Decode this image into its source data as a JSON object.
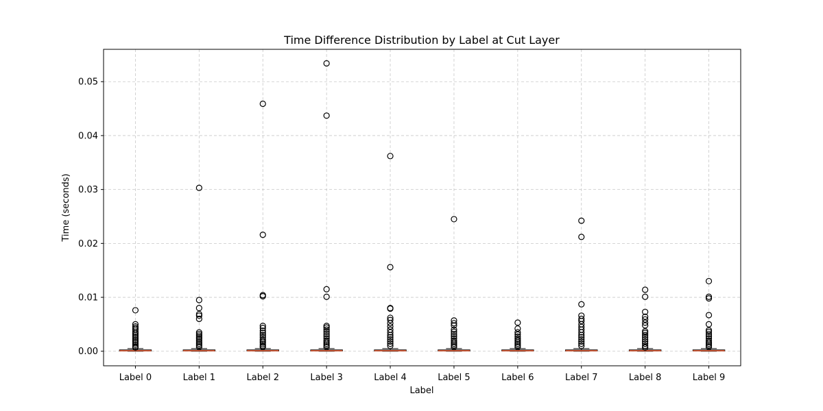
{
  "chart_data": {
    "type": "box",
    "title": "Time Difference Distribution by Label at Cut Layer",
    "xlabel": "Label",
    "ylabel": "Time (seconds)",
    "ylim": [
      -0.0027,
      0.056
    ],
    "yticks": [
      0.0,
      0.01,
      0.02,
      0.03,
      0.04,
      0.05
    ],
    "ytick_labels": [
      "0.00",
      "0.01",
      "0.02",
      "0.03",
      "0.04",
      "0.05"
    ],
    "grid": true,
    "colors": {
      "median": "#e8552a",
      "box": "#000000",
      "flier": "#000000",
      "grid": "#b0b0b0"
    },
    "categories": [
      "Label 0",
      "Label 1",
      "Label 2",
      "Label 3",
      "Label 4",
      "Label 5",
      "Label 6",
      "Label 7",
      "Label 8",
      "Label 9"
    ],
    "boxes": [
      {
        "q1": 5e-05,
        "median": 0.0001,
        "q3": 0.00025,
        "whisker_low": 0.0,
        "whisker_high": 0.0005,
        "outliers": [
          0.0076,
          0.005,
          0.0046,
          0.0043,
          0.004,
          0.0036,
          0.0033,
          0.003,
          0.0027,
          0.0024,
          0.0021,
          0.0018,
          0.0015,
          0.0012,
          0.0009,
          0.0007
        ]
      },
      {
        "q1": 5e-05,
        "median": 0.0001,
        "q3": 0.00025,
        "whisker_low": 0.0,
        "whisker_high": 0.0005,
        "outliers": [
          0.0303,
          0.0095,
          0.008,
          0.0069,
          0.0066,
          0.006,
          0.0035,
          0.0032,
          0.0029,
          0.0026,
          0.0023,
          0.002,
          0.0017,
          0.0014,
          0.0011,
          0.0008
        ]
      },
      {
        "q1": 5e-05,
        "median": 0.0001,
        "q3": 0.00025,
        "whisker_low": 0.0,
        "whisker_high": 0.0005,
        "outliers": [
          0.0459,
          0.0216,
          0.0104,
          0.0102,
          0.0047,
          0.0043,
          0.0038,
          0.0034,
          0.003,
          0.0026,
          0.0022,
          0.0019,
          0.0016,
          0.0013,
          0.001,
          0.0008
        ]
      },
      {
        "q1": 5e-05,
        "median": 0.0001,
        "q3": 0.00025,
        "whisker_low": 0.0,
        "whisker_high": 0.0005,
        "outliers": [
          0.0534,
          0.0437,
          0.0115,
          0.0101,
          0.0047,
          0.0044,
          0.004,
          0.0036,
          0.0032,
          0.0028,
          0.0024,
          0.002,
          0.0017,
          0.0014,
          0.0011,
          0.0008
        ]
      },
      {
        "q1": 5e-05,
        "median": 0.0001,
        "q3": 0.00025,
        "whisker_low": 0.0,
        "whisker_high": 0.0005,
        "outliers": [
          0.0362,
          0.0156,
          0.008,
          0.0079,
          0.0062,
          0.0058,
          0.0052,
          0.0046,
          0.004,
          0.0035,
          0.003,
          0.0026,
          0.0022,
          0.0018,
          0.0014,
          0.001
        ]
      },
      {
        "q1": 5e-05,
        "median": 0.0001,
        "q3": 0.00025,
        "whisker_low": 0.0,
        "whisker_high": 0.0005,
        "outliers": [
          0.0245,
          0.0057,
          0.0052,
          0.0048,
          0.004,
          0.0036,
          0.0032,
          0.0028,
          0.0024,
          0.002,
          0.0017,
          0.0014,
          0.0011,
          0.0008
        ]
      },
      {
        "q1": 5e-05,
        "median": 0.0001,
        "q3": 0.00025,
        "whisker_low": 0.0,
        "whisker_high": 0.0005,
        "outliers": [
          0.0053,
          0.0042,
          0.0035,
          0.0031,
          0.0027,
          0.0023,
          0.002,
          0.0017,
          0.0014,
          0.0011,
          0.0008
        ]
      },
      {
        "q1": 5e-05,
        "median": 0.0001,
        "q3": 0.00025,
        "whisker_low": 0.0,
        "whisker_high": 0.0005,
        "outliers": [
          0.0242,
          0.0212,
          0.0087,
          0.0066,
          0.006,
          0.0056,
          0.005,
          0.0045,
          0.004,
          0.0035,
          0.003,
          0.0026,
          0.0022,
          0.0018,
          0.0014,
          0.001
        ]
      },
      {
        "q1": 5e-05,
        "median": 0.0001,
        "q3": 0.00025,
        "whisker_low": 0.0,
        "whisker_high": 0.0005,
        "outliers": [
          0.0114,
          0.0101,
          0.0073,
          0.0064,
          0.0059,
          0.0053,
          0.0048,
          0.0037,
          0.0034,
          0.003,
          0.0026,
          0.0022,
          0.0018,
          0.0014,
          0.001,
          0.0007
        ]
      },
      {
        "q1": 5e-05,
        "median": 0.0001,
        "q3": 0.00025,
        "whisker_low": 0.0,
        "whisker_high": 0.0005,
        "outliers": [
          0.013,
          0.0101,
          0.0098,
          0.0067,
          0.005,
          0.0039,
          0.0036,
          0.0032,
          0.0028,
          0.0024,
          0.002,
          0.0017,
          0.0014,
          0.0011,
          0.0008
        ]
      }
    ]
  }
}
